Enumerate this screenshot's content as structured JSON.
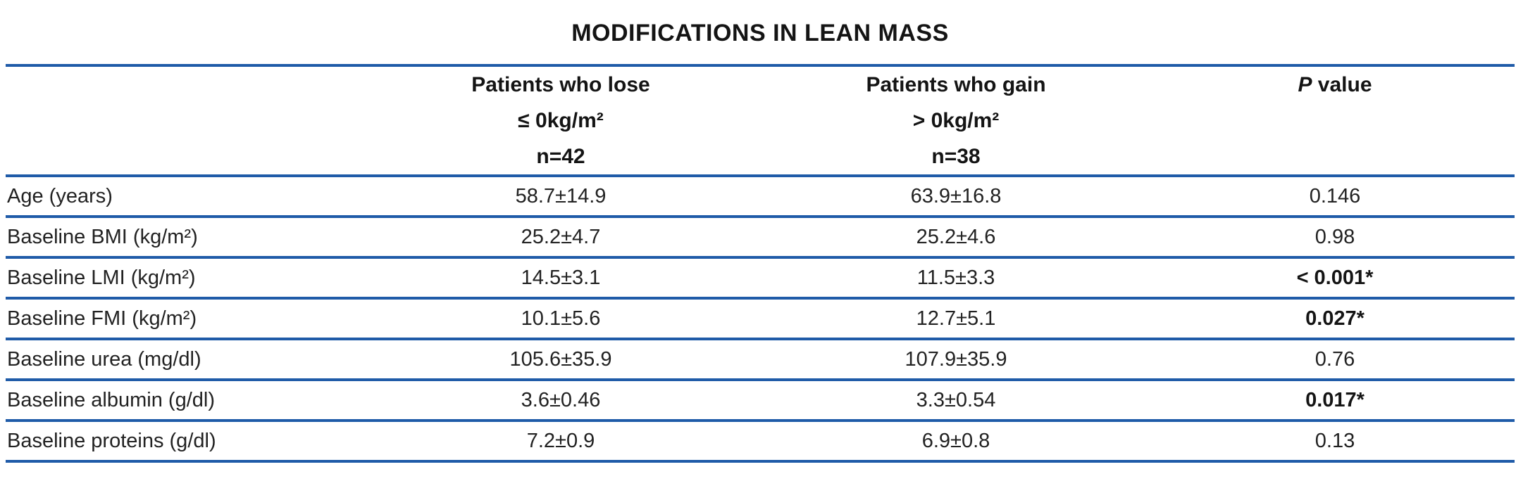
{
  "accent_color": "#1f5ba8",
  "title": "MODIFICATIONS IN LEAN MASS",
  "header": {
    "col_lose": {
      "line1": "Patients who lose",
      "line2": "≤ 0kg/m²",
      "line3": "n=42"
    },
    "col_gain": {
      "line1": "Patients who gain",
      "line2": "> 0kg/m²",
      "line3": "n=38"
    },
    "col_p": {
      "initial": "P",
      "rest": " value"
    }
  },
  "rows": [
    {
      "label": "Age (years)",
      "lose": "58.7±14.9",
      "gain": "63.9±16.8",
      "p": "0.146",
      "significant": false
    },
    {
      "label": "Baseline BMI (kg/m²)",
      "lose": "25.2±4.7",
      "gain": "25.2±4.6",
      "p": "0.98",
      "significant": false
    },
    {
      "label": "Baseline LMI (kg/m²)",
      "lose": "14.5±3.1",
      "gain": "11.5±3.3",
      "p": "< 0.001*",
      "significant": true
    },
    {
      "label": "Baseline FMI (kg/m²)",
      "lose": "10.1±5.6",
      "gain": "12.7±5.1",
      "p": "0.027*",
      "significant": true
    },
    {
      "label": "Baseline urea (mg/dl)",
      "lose": "105.6±35.9",
      "gain": "107.9±35.9",
      "p": "0.76",
      "significant": false
    },
    {
      "label": "Baseline albumin (g/dl)",
      "lose": "3.6±0.46",
      "gain": "3.3±0.54",
      "p": "0.017*",
      "significant": true
    },
    {
      "label": "Baseline proteins (g/dl)",
      "lose": "7.2±0.9",
      "gain": "6.9±0.8",
      "p": "0.13",
      "significant": false
    }
  ]
}
